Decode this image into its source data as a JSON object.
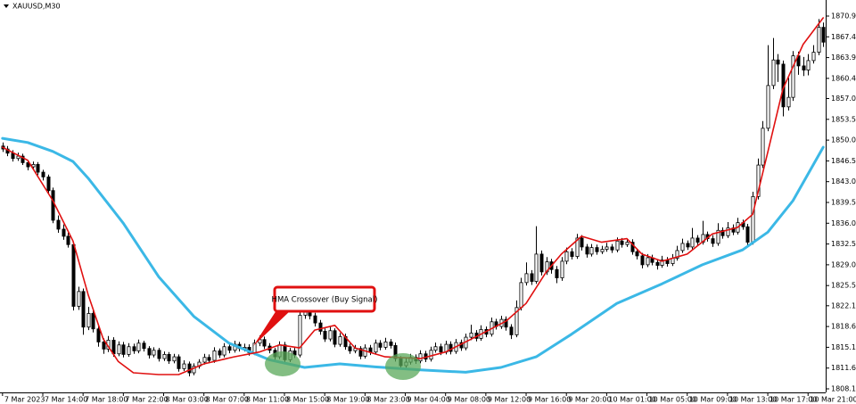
{
  "chart_data": {
    "type": "candlestick",
    "title": "XAUUSD,M30",
    "annotation": "HMA Crossover (Buy Signal)",
    "xlim": [
      -0.5,
      163.5
    ],
    "ylim": [
      1807.5,
      1872.1
    ],
    "up_color": "#ffffff",
    "down_color": "#000000",
    "outline_color": "#000000",
    "xticks": [
      {
        "value": 0,
        "label": "7 Mar 2023"
      },
      {
        "value": 8,
        "label": "7 Mar 14:00"
      },
      {
        "value": 16,
        "label": "7 Mar 18:00"
      },
      {
        "value": 24,
        "label": "7 Mar 22:00"
      },
      {
        "value": 32,
        "label": "8 Mar 03:00"
      },
      {
        "value": 40,
        "label": "8 Mar 07:00"
      },
      {
        "value": 48,
        "label": "8 Mar 11:00"
      },
      {
        "value": 56,
        "label": "8 Mar 15:00"
      },
      {
        "value": 64,
        "label": "8 Mar 19:00"
      },
      {
        "value": 72,
        "label": "8 Mar 23:00"
      },
      {
        "value": 80,
        "label": "9 Mar 04:00"
      },
      {
        "value": 88,
        "label": "9 Mar 08:00"
      },
      {
        "value": 96,
        "label": "9 Mar 12:00"
      },
      {
        "value": 104,
        "label": "9 Mar 16:00"
      },
      {
        "value": 112,
        "label": "9 Mar 20:00"
      },
      {
        "value": 120,
        "label": "10 Mar 01:00"
      },
      {
        "value": 128,
        "label": "10 Mar 05:00"
      },
      {
        "value": 136,
        "label": "10 Mar 09:00"
      },
      {
        "value": 144,
        "label": "10 Mar 13:00"
      },
      {
        "value": 152,
        "label": "10 Mar 17:00"
      },
      {
        "value": 160,
        "label": "10 Mar 21:00"
      }
    ],
    "yticks": [
      {
        "value": 1808.1,
        "label": "1808.10"
      },
      {
        "value": 1811.6,
        "label": "1811.60"
      },
      {
        "value": 1815.1,
        "label": "1815.10"
      },
      {
        "value": 1818.6,
        "label": "1818.60"
      },
      {
        "value": 1822.1,
        "label": "1822.10"
      },
      {
        "value": 1825.5,
        "label": "1825.50"
      },
      {
        "value": 1829,
        "label": "1829.00"
      },
      {
        "value": 1832.5,
        "label": "1832.50"
      },
      {
        "value": 1836,
        "label": "1836.00"
      },
      {
        "value": 1839.5,
        "label": "1839.50"
      },
      {
        "value": 1843,
        "label": "1843.00"
      },
      {
        "value": 1846.5,
        "label": "1846.50"
      },
      {
        "value": 1850,
        "label": "1850.00"
      },
      {
        "value": 1853.5,
        "label": "1853.50"
      },
      {
        "value": 1857,
        "label": "1857.00"
      },
      {
        "value": 1860.4,
        "label": "1860.40"
      },
      {
        "value": 1863.9,
        "label": "1863.90"
      },
      {
        "value": 1867.4,
        "label": "1867.40"
      },
      {
        "value": 1870.9,
        "label": "1870.90"
      }
    ],
    "ohlc": [
      [
        1849.0,
        1849.6,
        1848.0,
        1848.5
      ],
      [
        1848.5,
        1849.0,
        1847.3,
        1847.8
      ],
      [
        1847.8,
        1848.3,
        1846.4,
        1846.9
      ],
      [
        1846.9,
        1847.9,
        1846.5,
        1847.3
      ],
      [
        1847.3,
        1847.7,
        1845.8,
        1846.2
      ],
      [
        1846.2,
        1846.6,
        1844.9,
        1845.5
      ],
      [
        1845.5,
        1846.4,
        1845.0,
        1845.9
      ],
      [
        1845.9,
        1846.3,
        1844.1,
        1844.6
      ],
      [
        1844.6,
        1845.0,
        1843.2,
        1843.8
      ],
      [
        1843.8,
        1844.2,
        1841.0,
        1841.5
      ],
      [
        1841.5,
        1842.0,
        1836.0,
        1836.5
      ],
      [
        1836.5,
        1837.3,
        1834.4,
        1835.0
      ],
      [
        1835.0,
        1835.8,
        1833.2,
        1833.8
      ],
      [
        1833.8,
        1834.4,
        1831.9,
        1832.4
      ],
      [
        1832.4,
        1832.9,
        1821.3,
        1822.0
      ],
      [
        1822.0,
        1825.3,
        1821.4,
        1824.5
      ],
      [
        1824.5,
        1825.0,
        1817.2,
        1818.5
      ],
      [
        1818.5,
        1821.9,
        1818.0,
        1820.8
      ],
      [
        1820.8,
        1821.3,
        1817.6,
        1818.2
      ],
      [
        1818.2,
        1818.8,
        1815.2,
        1816.0
      ],
      [
        1816.0,
        1816.6,
        1814.0,
        1814.8
      ],
      [
        1814.8,
        1817.0,
        1814.3,
        1816.3
      ],
      [
        1816.3,
        1816.8,
        1813.5,
        1814.0
      ],
      [
        1814.0,
        1816.1,
        1813.6,
        1815.5
      ],
      [
        1815.5,
        1816.0,
        1813.4,
        1813.9
      ],
      [
        1813.9,
        1815.8,
        1813.5,
        1815.2
      ],
      [
        1815.2,
        1815.7,
        1814.0,
        1814.5
      ],
      [
        1814.5,
        1816.4,
        1814.1,
        1815.8
      ],
      [
        1815.8,
        1816.2,
        1814.4,
        1814.9
      ],
      [
        1814.9,
        1815.3,
        1813.2,
        1813.8
      ],
      [
        1813.8,
        1815.1,
        1813.4,
        1814.6
      ],
      [
        1814.6,
        1815.0,
        1812.7,
        1813.2
      ],
      [
        1813.2,
        1814.4,
        1812.8,
        1813.9
      ],
      [
        1813.9,
        1814.3,
        1812.3,
        1812.8
      ],
      [
        1812.8,
        1814.0,
        1812.4,
        1813.5
      ],
      [
        1813.5,
        1813.9,
        1811.0,
        1811.5
      ],
      [
        1811.5,
        1812.9,
        1811.1,
        1812.3
      ],
      [
        1812.3,
        1812.7,
        1810.2,
        1810.8
      ],
      [
        1810.8,
        1812.4,
        1810.4,
        1811.9
      ],
      [
        1811.9,
        1813.1,
        1811.5,
        1812.6
      ],
      [
        1812.6,
        1814.0,
        1812.2,
        1813.4
      ],
      [
        1813.4,
        1813.9,
        1812.4,
        1812.9
      ],
      [
        1812.9,
        1815.1,
        1812.5,
        1814.5
      ],
      [
        1814.5,
        1814.9,
        1813.3,
        1813.8
      ],
      [
        1813.8,
        1815.8,
        1813.4,
        1815.2
      ],
      [
        1815.2,
        1815.7,
        1814.1,
        1814.6
      ],
      [
        1814.6,
        1816.2,
        1814.2,
        1815.6
      ],
      [
        1815.6,
        1816.0,
        1814.4,
        1814.9
      ],
      [
        1814.9,
        1815.7,
        1814.4,
        1815.1
      ],
      [
        1815.1,
        1815.6,
        1813.7,
        1814.2
      ],
      [
        1814.2,
        1816.4,
        1813.8,
        1815.8
      ],
      [
        1815.8,
        1817.1,
        1815.3,
        1816.4
      ],
      [
        1816.4,
        1816.9,
        1814.8,
        1815.3
      ],
      [
        1815.3,
        1815.8,
        1814.1,
        1814.6
      ],
      [
        1814.6,
        1815.0,
        1813.0,
        1813.5
      ],
      [
        1813.5,
        1816.1,
        1813.1,
        1815.5
      ],
      [
        1815.5,
        1816.0,
        1812.5,
        1813.0
      ],
      [
        1813.0,
        1815.0,
        1812.6,
        1814.5
      ],
      [
        1814.5,
        1815.0,
        1813.3,
        1813.8
      ],
      [
        1813.8,
        1821.2,
        1813.4,
        1820.5
      ],
      [
        1820.5,
        1821.7,
        1819.9,
        1821.0
      ],
      [
        1821.0,
        1821.5,
        1819.8,
        1820.4
      ],
      [
        1820.4,
        1820.9,
        1818.6,
        1819.2
      ],
      [
        1819.2,
        1819.7,
        1817.2,
        1817.8
      ],
      [
        1817.8,
        1818.3,
        1816.0,
        1816.5
      ],
      [
        1816.5,
        1818.6,
        1816.1,
        1817.9
      ],
      [
        1817.9,
        1818.3,
        1815.1,
        1815.6
      ],
      [
        1815.6,
        1817.5,
        1815.2,
        1816.9
      ],
      [
        1816.9,
        1817.4,
        1814.7,
        1815.2
      ],
      [
        1815.2,
        1815.7,
        1814.0,
        1814.5
      ],
      [
        1814.5,
        1815.5,
        1814.1,
        1814.9
      ],
      [
        1814.9,
        1815.3,
        1813.1,
        1813.6
      ],
      [
        1813.6,
        1815.6,
        1813.2,
        1815.0
      ],
      [
        1815.0,
        1815.5,
        1813.8,
        1814.3
      ],
      [
        1814.3,
        1816.4,
        1813.9,
        1815.8
      ],
      [
        1815.8,
        1816.3,
        1814.6,
        1815.1
      ],
      [
        1815.1,
        1816.7,
        1814.7,
        1816.0
      ],
      [
        1816.0,
        1816.5,
        1814.9,
        1815.4
      ],
      [
        1815.4,
        1815.9,
        1812.7,
        1813.2
      ],
      [
        1813.2,
        1813.6,
        1811.4,
        1812.0
      ],
      [
        1812.0,
        1813.2,
        1811.6,
        1812.6
      ],
      [
        1812.6,
        1814.0,
        1812.2,
        1813.4
      ],
      [
        1813.4,
        1813.9,
        1812.3,
        1812.8
      ],
      [
        1812.8,
        1814.6,
        1812.4,
        1814.0
      ],
      [
        1814.0,
        1814.5,
        1812.6,
        1813.1
      ],
      [
        1813.1,
        1815.2,
        1812.7,
        1814.6
      ],
      [
        1814.6,
        1815.9,
        1814.2,
        1815.2
      ],
      [
        1815.2,
        1815.7,
        1813.8,
        1814.3
      ],
      [
        1814.3,
        1816.2,
        1813.9,
        1815.6
      ],
      [
        1815.6,
        1816.1,
        1813.9,
        1814.4
      ],
      [
        1814.4,
        1816.5,
        1814.0,
        1815.9
      ],
      [
        1815.9,
        1816.4,
        1814.5,
        1815.0
      ],
      [
        1815.0,
        1817.4,
        1814.6,
        1816.8
      ],
      [
        1816.8,
        1818.9,
        1816.3,
        1817.5
      ],
      [
        1817.5,
        1818.0,
        1816.1,
        1816.6
      ],
      [
        1816.6,
        1818.8,
        1816.2,
        1818.1
      ],
      [
        1818.1,
        1818.6,
        1816.8,
        1817.3
      ],
      [
        1817.3,
        1820.1,
        1816.9,
        1819.4
      ],
      [
        1819.4,
        1819.9,
        1818.1,
        1818.6
      ],
      [
        1818.6,
        1820.4,
        1818.2,
        1819.8
      ],
      [
        1819.8,
        1820.3,
        1817.9,
        1818.5
      ],
      [
        1818.5,
        1819.0,
        1816.5,
        1817.2
      ],
      [
        1817.2,
        1823.0,
        1816.8,
        1821.8
      ],
      [
        1821.8,
        1826.8,
        1821.3,
        1826.0
      ],
      [
        1826.0,
        1829.4,
        1825.5,
        1827.5
      ],
      [
        1827.5,
        1828.1,
        1825.6,
        1826.2
      ],
      [
        1826.2,
        1835.5,
        1825.8,
        1830.8
      ],
      [
        1830.8,
        1831.4,
        1827.2,
        1827.8
      ],
      [
        1827.8,
        1830.3,
        1827.3,
        1829.5
      ],
      [
        1829.5,
        1830.0,
        1827.5,
        1828.2
      ],
      [
        1828.2,
        1828.8,
        1825.9,
        1826.8
      ],
      [
        1826.8,
        1830.3,
        1826.3,
        1829.6
      ],
      [
        1829.6,
        1831.9,
        1829.1,
        1831.2
      ],
      [
        1831.2,
        1831.8,
        1829.9,
        1830.4
      ],
      [
        1830.4,
        1834.2,
        1830.0,
        1833.5
      ],
      [
        1833.5,
        1834.0,
        1831.4,
        1832.0
      ],
      [
        1832.0,
        1832.5,
        1830.2,
        1830.8
      ],
      [
        1830.8,
        1832.5,
        1830.4,
        1831.9
      ],
      [
        1831.9,
        1832.4,
        1830.7,
        1831.2
      ],
      [
        1831.2,
        1832.2,
        1830.8,
        1831.6
      ],
      [
        1831.6,
        1832.7,
        1831.2,
        1832.0
      ],
      [
        1832.0,
        1832.5,
        1831.0,
        1831.5
      ],
      [
        1831.5,
        1833.6,
        1831.1,
        1833.0
      ],
      [
        1833.0,
        1833.5,
        1831.9,
        1832.4
      ],
      [
        1832.4,
        1833.4,
        1832.0,
        1832.8
      ],
      [
        1832.8,
        1833.3,
        1830.7,
        1831.2
      ],
      [
        1831.2,
        1831.7,
        1829.9,
        1830.5
      ],
      [
        1830.5,
        1831.0,
        1828.4,
        1829.0
      ],
      [
        1829.0,
        1830.8,
        1828.6,
        1830.2
      ],
      [
        1830.2,
        1830.7,
        1828.9,
        1829.4
      ],
      [
        1829.4,
        1829.9,
        1828.2,
        1828.9
      ],
      [
        1828.9,
        1830.5,
        1828.5,
        1829.8
      ],
      [
        1829.8,
        1830.3,
        1828.7,
        1829.2
      ],
      [
        1829.2,
        1830.8,
        1828.8,
        1830.1
      ],
      [
        1830.1,
        1832.2,
        1829.7,
        1831.4
      ],
      [
        1831.4,
        1833.4,
        1831.0,
        1832.6
      ],
      [
        1832.6,
        1833.1,
        1831.5,
        1832.0
      ],
      [
        1832.0,
        1835.2,
        1831.6,
        1833.5
      ],
      [
        1833.5,
        1834.0,
        1832.3,
        1832.8
      ],
      [
        1832.8,
        1836.4,
        1832.4,
        1834.1
      ],
      [
        1834.1,
        1834.6,
        1832.9,
        1833.4
      ],
      [
        1833.4,
        1834.0,
        1832.0,
        1832.6
      ],
      [
        1832.6,
        1836.0,
        1832.2,
        1834.8
      ],
      [
        1834.8,
        1835.3,
        1833.4,
        1833.9
      ],
      [
        1833.9,
        1836.2,
        1833.5,
        1835.2
      ],
      [
        1835.2,
        1835.8,
        1834.0,
        1834.5
      ],
      [
        1834.5,
        1836.9,
        1834.1,
        1836.1
      ],
      [
        1836.1,
        1836.6,
        1834.9,
        1835.4
      ],
      [
        1835.4,
        1835.9,
        1832.0,
        1832.8
      ],
      [
        1832.8,
        1841.3,
        1832.4,
        1840.5
      ],
      [
        1840.5,
        1846.9,
        1840.0,
        1845.8
      ],
      [
        1845.8,
        1853.2,
        1845.3,
        1852.0
      ],
      [
        1852.0,
        1866.0,
        1851.5,
        1859.2
      ],
      [
        1859.2,
        1867.2,
        1858.6,
        1863.5
      ],
      [
        1863.5,
        1864.5,
        1859.8,
        1862.8
      ],
      [
        1862.8,
        1863.4,
        1854.0,
        1855.6
      ],
      [
        1855.6,
        1860.5,
        1855.0,
        1857.2
      ],
      [
        1857.2,
        1865.0,
        1856.6,
        1864.2
      ],
      [
        1864.2,
        1864.9,
        1861.0,
        1862.5
      ],
      [
        1862.5,
        1864.0,
        1860.8,
        1861.8
      ],
      [
        1861.8,
        1864.5,
        1860.9,
        1863.4
      ],
      [
        1863.4,
        1866.0,
        1862.9,
        1864.8
      ],
      [
        1864.8,
        1870.4,
        1864.3,
        1869.0
      ],
      [
        1869.0,
        1869.8,
        1865.7,
        1866.5
      ]
    ],
    "lines": [
      {
        "color": "#3bb8e6",
        "width": 3,
        "x": [
          0,
          5,
          10,
          14,
          17,
          24,
          31,
          38,
          45,
          53,
          60,
          67,
          74,
          83,
          92,
          99,
          106,
          113,
          122,
          131,
          139,
          147,
          152,
          157,
          163
        ],
        "values": [
          1850.3,
          1849.6,
          1848.1,
          1846.4,
          1843.6,
          1836.0,
          1827.0,
          1820.3,
          1815.8,
          1813.0,
          1811.7,
          1812.3,
          1811.8,
          1811.3,
          1810.9,
          1811.7,
          1813.5,
          1817.3,
          1822.5,
          1825.8,
          1829.0,
          1831.5,
          1834.5,
          1839.8,
          1848.8
        ]
      },
      {
        "color": "#e01010",
        "width": 1.6,
        "x": [
          0,
          5,
          10,
          14,
          17,
          20,
          23,
          26,
          31,
          35,
          40,
          46,
          51,
          55,
          59,
          62,
          66,
          70,
          76,
          83,
          88,
          95,
          100,
          104,
          108,
          111,
          115,
          119,
          124,
          127,
          131,
          136,
          141,
          146,
          149,
          152,
          155,
          159,
          163
        ],
        "values": [
          1848.8,
          1846.6,
          1839.8,
          1833.0,
          1824.0,
          1816.5,
          1812.7,
          1810.8,
          1810.5,
          1810.5,
          1812.3,
          1813.5,
          1814.3,
          1815.5,
          1815.0,
          1818.0,
          1818.8,
          1815.0,
          1813.5,
          1813.2,
          1814.3,
          1817.3,
          1819.5,
          1822.5,
          1827.8,
          1830.8,
          1833.8,
          1832.8,
          1833.4,
          1830.8,
          1829.6,
          1830.8,
          1834.2,
          1835.3,
          1837.5,
          1848.0,
          1858.6,
          1866.1,
          1870.6
        ]
      }
    ]
  }
}
